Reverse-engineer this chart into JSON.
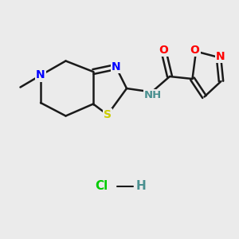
{
  "background_color": "#ebebeb",
  "bond_color": "#1a1a1a",
  "bond_width": 1.8,
  "atom_colors": {
    "N": "#0000ff",
    "O": "#ff0000",
    "S": "#cccc00",
    "C": "#1a1a1a",
    "H_teal": "#4a9090",
    "Cl": "#00cc00"
  },
  "font_size": 10,
  "figsize": [
    3.0,
    3.0
  ],
  "dpi": 100,
  "xlim": [
    0,
    10
  ],
  "ylim": [
    0,
    10
  ]
}
